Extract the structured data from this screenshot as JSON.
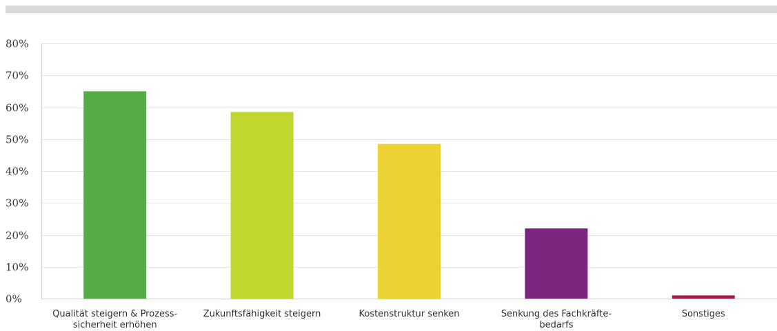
{
  "chart_data": {
    "type": "bar",
    "title": "",
    "xlabel": "",
    "ylabel": "",
    "categories": [
      [
        "Qualität steigern & Prozess-",
        "sicherheit erhöhen"
      ],
      [
        "Zukunftsfähigkeit steigern"
      ],
      [
        "Kostenstruktur senken"
      ],
      [
        "Senkung des Fachkräfte-",
        "bedarfs"
      ],
      [
        "Sonstiges"
      ]
    ],
    "values": [
      65,
      58.5,
      48.5,
      22,
      1
    ],
    "colors": [
      "#55ab45",
      "#c1d72f",
      "#ecd232",
      "#7b257e",
      "#a4184c"
    ],
    "ylim": [
      0,
      80
    ],
    "yticks": [
      0,
      10,
      20,
      30,
      40,
      50,
      60,
      70,
      80
    ],
    "ytick_labels": [
      "0%",
      "10%",
      "20%",
      "30%",
      "40%",
      "50%",
      "60%",
      "70%",
      "80%"
    ],
    "grid": true,
    "legend": "none"
  }
}
